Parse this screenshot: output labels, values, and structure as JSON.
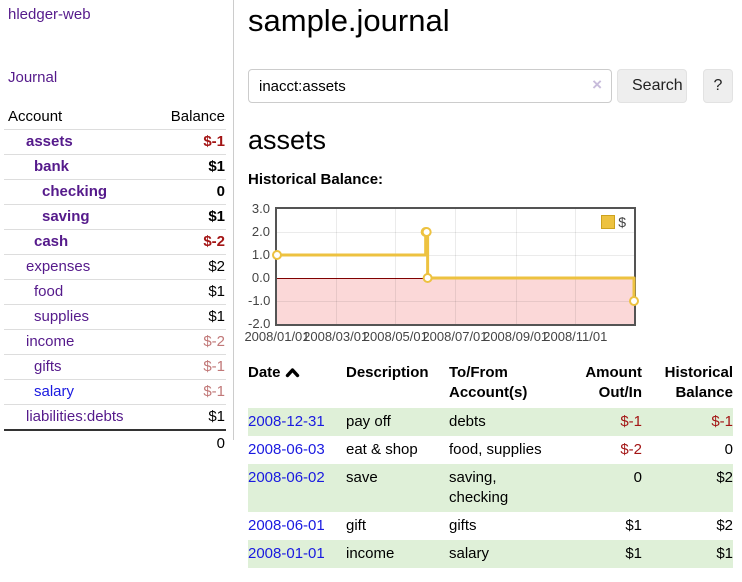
{
  "colors": {
    "purple": "#551a8b",
    "blue": "#1a1ae0",
    "neg": "#a31515",
    "negmuted": "#c17878",
    "green": "#dff0d8",
    "yellow": "#edc240",
    "yellowborder": "#cda21f",
    "pink": "#fbd8d8",
    "zeroline": "#8b0000",
    "chartborder": "#545454",
    "clearx": "#c8bcdb",
    "btnbg": "#eeeeee"
  },
  "sidebar": {
    "brand": "hledger-web",
    "journal_link": "Journal",
    "accounts": {
      "header_account": "Account",
      "header_balance": "Balance",
      "rows": [
        {
          "name": "assets",
          "balance": "$-1",
          "depth": 1,
          "in_account": true
        },
        {
          "name": "bank",
          "balance": "$1",
          "depth": 2,
          "in_account": true
        },
        {
          "name": "checking",
          "balance": "0",
          "depth": 3,
          "in_account": true
        },
        {
          "name": "saving",
          "balance": "$1",
          "depth": 3,
          "in_account": true
        },
        {
          "name": "cash",
          "balance": "$-2",
          "depth": 2,
          "in_account": true
        },
        {
          "name": "expenses",
          "balance": "$2",
          "depth": 1
        },
        {
          "name": "food",
          "balance": "$1",
          "depth": 2
        },
        {
          "name": "supplies",
          "balance": "$1",
          "depth": 2
        },
        {
          "name": "income",
          "balance": "$-2",
          "depth": 1
        },
        {
          "name": "gifts",
          "balance": "$-1",
          "depth": 2
        },
        {
          "name": "salary",
          "balance": "$-1",
          "depth": 2,
          "blue_link": true
        },
        {
          "name": "liabilities:debts",
          "balance": "$1",
          "depth": 1
        }
      ],
      "total": "0"
    }
  },
  "main": {
    "title": "sample.journal",
    "search": {
      "value": "inacct:assets",
      "clear_icon": "×",
      "search_label": "Search",
      "help_label": "?"
    },
    "account_heading": "assets",
    "chart_title": "Historical Balance:"
  },
  "chart_data": {
    "type": "line",
    "step": true,
    "title": "Historical Balance",
    "series": [
      {
        "name": "$",
        "color": "#edc240",
        "points": [
          [
            "2008-01-01",
            1
          ],
          [
            "2008-06-01",
            2
          ],
          [
            "2008-06-02",
            2
          ],
          [
            "2008-06-03",
            0
          ],
          [
            "2008-12-31",
            -1
          ]
        ]
      }
    ],
    "x_range": [
      "2008-01-01",
      "2008-12-31"
    ],
    "y_range": [
      -2,
      3
    ],
    "x_ticks": [
      "2008/01/01",
      "2008/03/01",
      "2008/05/01",
      "2008/07/01",
      "2008/09/01",
      "2008/11/01"
    ],
    "y_ticks": [
      "3.0",
      "2.0",
      "1.0",
      "0.0",
      "-1.0",
      "-2.0"
    ],
    "legend_position": "top-right",
    "grid": true,
    "negative_region_shaded": true
  },
  "register": {
    "columns": [
      {
        "line1": "Date",
        "line2": "",
        "align": "left",
        "sortable": true,
        "sort": "asc"
      },
      {
        "line1": "Description",
        "line2": "",
        "align": "left"
      },
      {
        "line1": "To/From",
        "line2": "Account(s)",
        "align": "left"
      },
      {
        "line1": "Amount",
        "line2": "Out/In",
        "align": "right"
      },
      {
        "line1": "Historical",
        "line2": "Balance",
        "align": "right"
      }
    ],
    "rows": [
      {
        "date": "2008-12-31",
        "description": "pay off",
        "accounts": [
          "debts"
        ],
        "amount": "$-1",
        "balance": "$-1"
      },
      {
        "date": "2008-06-03",
        "description": "eat & shop",
        "accounts": [
          "food, supplies"
        ],
        "amount": "$-2",
        "balance": "0"
      },
      {
        "date": "2008-06-02",
        "description": "save",
        "accounts": [
          "saving,",
          "checking"
        ],
        "amount": "0",
        "balance": "$2"
      },
      {
        "date": "2008-06-01",
        "description": "gift",
        "accounts": [
          "gifts"
        ],
        "amount": "$1",
        "balance": "$2"
      },
      {
        "date": "2008-01-01",
        "description": "income",
        "accounts": [
          "salary"
        ],
        "amount": "$1",
        "balance": "$1"
      }
    ]
  }
}
